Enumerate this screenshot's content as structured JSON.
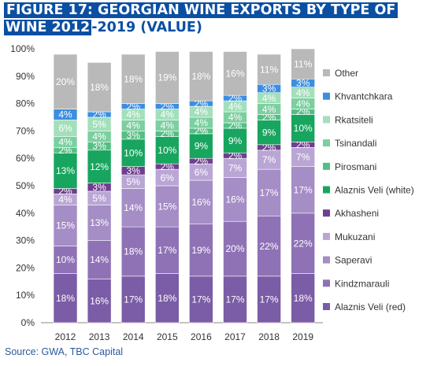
{
  "title": {
    "line1": "FIGURE 17: GEORGIAN WINE EXPORTS BY TYPE OF",
    "line2_highlight": "WINE 2012",
    "line2_rest": "-2019 (VALUE)"
  },
  "source": "Source: GWA, TBC Capital",
  "chart_data": {
    "type": "bar",
    "stacked": true,
    "categories": [
      "2012",
      "2013",
      "2014",
      "2015",
      "2016",
      "2017",
      "2018",
      "2019"
    ],
    "y_ticks": [
      "0%",
      "10%",
      "20%",
      "30%",
      "40%",
      "50%",
      "60%",
      "70%",
      "80%",
      "90%",
      "100%"
    ],
    "ylim": [
      0,
      100
    ],
    "legend_position": "right",
    "series": [
      {
        "name": "Alaznis Veli (red)",
        "color": "#7b5ca6",
        "values": [
          18,
          16,
          17,
          18,
          17,
          17,
          17,
          18
        ],
        "labels": [
          "18%",
          "16%",
          "17%",
          "18%",
          "17%",
          "17%",
          "17%",
          "18%"
        ]
      },
      {
        "name": "Kindzmarauli",
        "color": "#8f72b5",
        "values": [
          10,
          14,
          18,
          17,
          19,
          20,
          22,
          22
        ],
        "labels": [
          "10%",
          "14%",
          "18%",
          "17%",
          "19%",
          "20%",
          "22%",
          "22%"
        ]
      },
      {
        "name": "Saperavi",
        "color": "#a58dc6",
        "values": [
          15,
          13,
          14,
          15,
          16,
          16,
          17,
          17
        ],
        "labels": [
          "15%",
          "13%",
          "14%",
          "15%",
          "16%",
          "16%",
          "17%",
          "17%"
        ]
      },
      {
        "name": "Mukuzani",
        "color": "#baa6d5",
        "values": [
          4,
          5,
          5,
          6,
          6,
          7,
          7,
          7
        ],
        "labels": [
          "4%",
          "5%",
          "5%",
          "6%",
          "6%",
          "7%",
          "7%",
          "7%"
        ]
      },
      {
        "name": "Akhasheni",
        "color": "#6f3f8f",
        "values": [
          2,
          3,
          3,
          2,
          2,
          2,
          2,
          2
        ],
        "labels": [
          "2%",
          "3%",
          "3%",
          "2%",
          "2%",
          "2%",
          "2%",
          "2%"
        ]
      },
      {
        "name": "Alaznis Veli (white)",
        "color": "#18a55f",
        "values": [
          13,
          12,
          10,
          10,
          9,
          9,
          9,
          10
        ],
        "labels": [
          "13%",
          "12%",
          "10%",
          "10%",
          "9%",
          "9%",
          "9%",
          "10%"
        ]
      },
      {
        "name": "Pirosmani",
        "color": "#55be84",
        "values": [
          2,
          3,
          3,
          2,
          2,
          2,
          2,
          2
        ],
        "labels": [
          "2%",
          "3%",
          "3%",
          "2%",
          "2%",
          "2%",
          "2%",
          "2%"
        ]
      },
      {
        "name": "Tsinandali",
        "color": "#7ccf9f",
        "values": [
          4,
          4,
          4,
          4,
          4,
          4,
          4,
          4
        ],
        "labels": [
          "4%",
          "4%",
          "4%",
          "4%",
          "4%",
          "4%",
          "4%",
          "4%"
        ]
      },
      {
        "name": "Rkatsiteli",
        "color": "#a3dfbb",
        "values": [
          6,
          5,
          4,
          4,
          4,
          4,
          4,
          4
        ],
        "labels": [
          "6%",
          "5%",
          "4%",
          "4%",
          "4%",
          "4%",
          "4%",
          "4%"
        ]
      },
      {
        "name": "Khvantchkara",
        "color": "#3c8ee0",
        "values": [
          4,
          2,
          2,
          2,
          2,
          2,
          3,
          3
        ],
        "labels": [
          "4%",
          "2%",
          "2%",
          "2%",
          "2%",
          "2%",
          "3%",
          "3%"
        ]
      },
      {
        "name": "Other",
        "color": "#b9b9b9",
        "values": [
          20,
          18,
          18,
          19,
          18,
          16,
          11,
          11
        ],
        "labels": [
          "20%",
          "18%",
          "18%",
          "19%",
          "18%",
          "16%",
          "11%",
          "11%"
        ]
      }
    ]
  }
}
